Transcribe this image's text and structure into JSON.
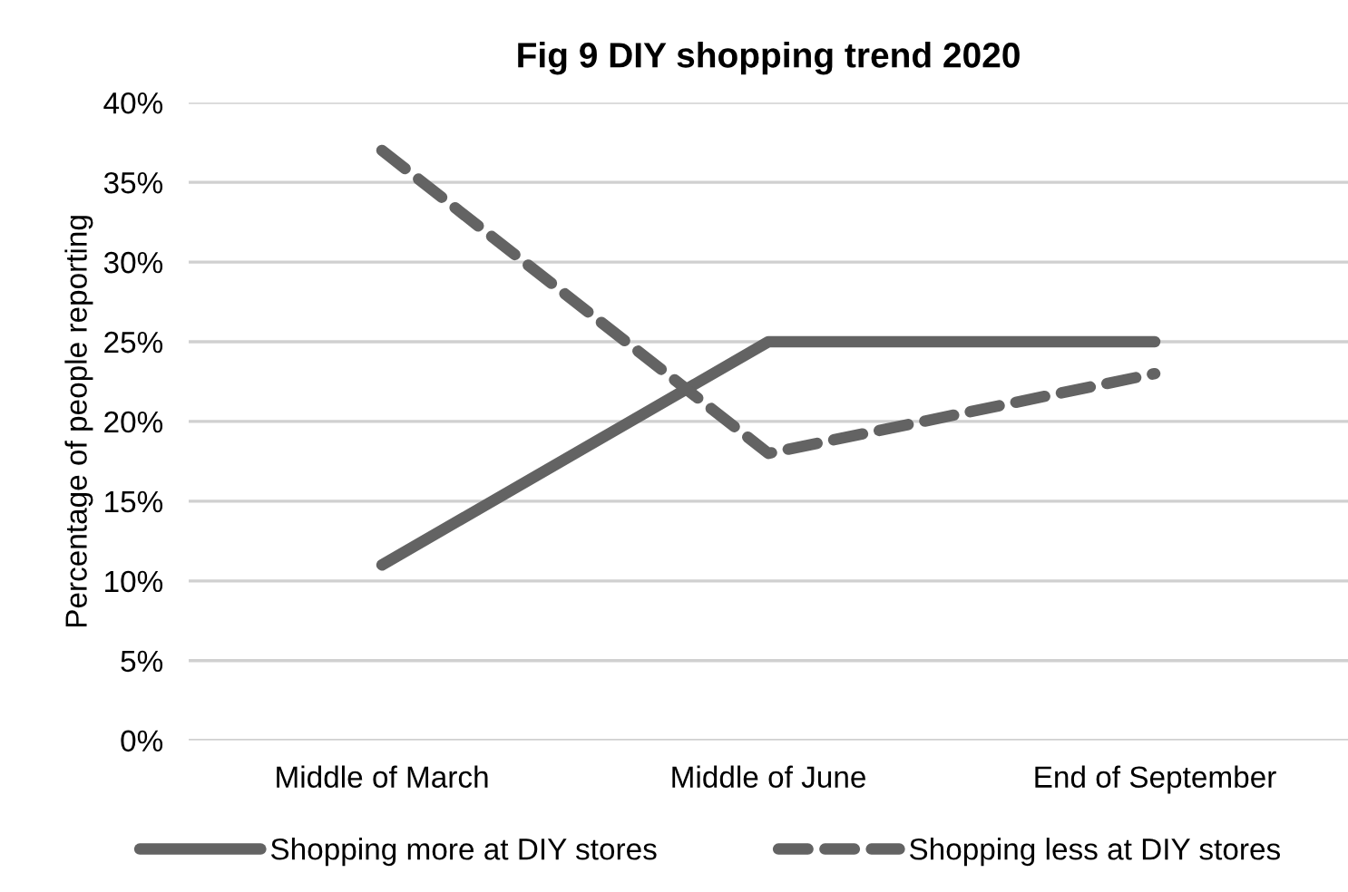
{
  "chart_data": {
    "type": "line",
    "title": "Fig 9 DIY shopping trend 2020",
    "ylabel": "Percentage of people reporting",
    "categories": [
      "Middle of March",
      "Middle of June",
      "End of September"
    ],
    "series": [
      {
        "name": "Shopping more at DIY stores",
        "color": "#636363",
        "values": [
          11,
          25,
          25
        ],
        "line_style": "solid"
      },
      {
        "name": "Shopping less at DIY stores",
        "color": "#636363",
        "values": [
          37,
          18,
          23
        ],
        "line_style": "dashed"
      }
    ],
    "ylim": [
      0,
      40
    ],
    "yticks": [
      {
        "value": 0,
        "label": "0%"
      },
      {
        "value": 5,
        "label": "5%"
      },
      {
        "value": 10,
        "label": "10%"
      },
      {
        "value": 15,
        "label": "15%"
      },
      {
        "value": 20,
        "label": "20%"
      },
      {
        "value": 25,
        "label": "25%"
      },
      {
        "value": 30,
        "label": "30%"
      },
      {
        "value": 35,
        "label": "35%"
      },
      {
        "value": 40,
        "label": "40%"
      }
    ],
    "grid": "y",
    "legend": "bottom",
    "marker": "none"
  }
}
